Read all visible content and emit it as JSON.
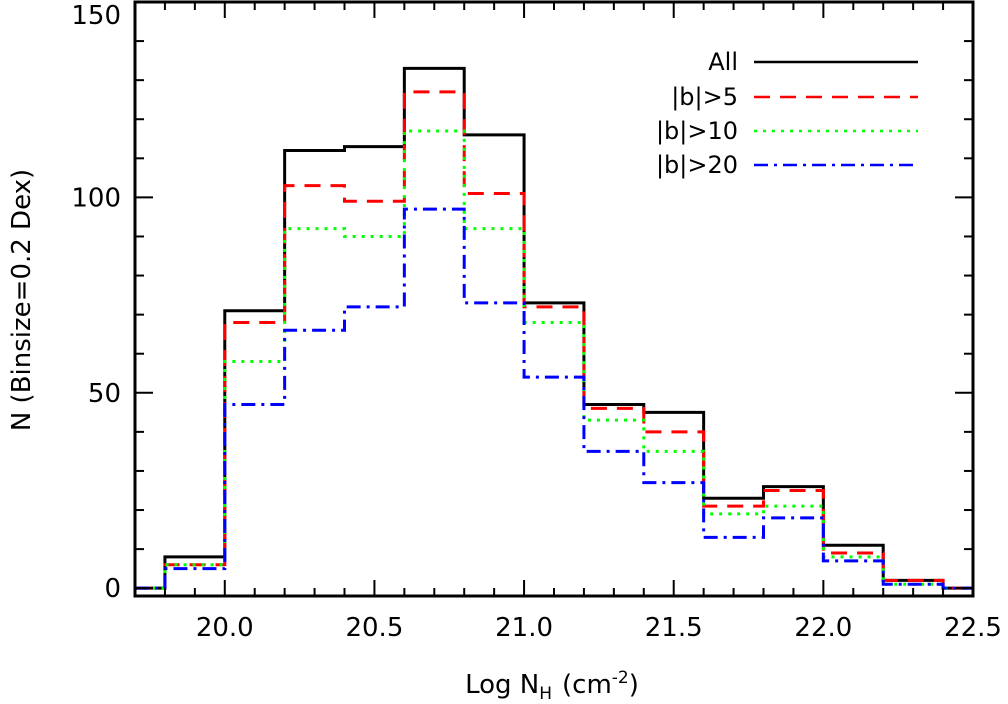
{
  "chart_data": {
    "type": "line",
    "step": true,
    "xlabel_main": "Log N",
    "xlabel_sub": "H",
    "xlabel_unit_open": "(cm",
    "xlabel_unit_sup": "-2",
    "xlabel_unit_close": ")",
    "ylabel": "N (Binsize=0.2 Dex)",
    "xlim": [
      19.7,
      22.5
    ],
    "ylim": [
      -2,
      150
    ],
    "x_ticks": [
      "20.0",
      "20.5",
      "21.0",
      "21.5",
      "22.0",
      "22.5"
    ],
    "y_ticks": [
      "0",
      "50",
      "100",
      "150"
    ],
    "bin_width": 0.2,
    "bin_starts": [
      19.8,
      20.0,
      20.2,
      20.4,
      20.6,
      20.8,
      21.0,
      21.2,
      21.4,
      21.6,
      21.8,
      22.0,
      22.2
    ],
    "legend_position": "top-right",
    "series": [
      {
        "name": "All",
        "color": "#000000",
        "dash": "solid",
        "values": [
          8,
          71,
          112,
          113,
          133,
          116,
          73,
          47,
          45,
          23,
          26,
          11,
          2
        ]
      },
      {
        "name": "|b|>5",
        "color": "#ff0000",
        "dash": "dashed",
        "values": [
          6,
          68,
          103,
          99,
          127,
          101,
          72,
          46,
          40,
          21,
          25,
          9,
          2
        ]
      },
      {
        "name": "|b|>10",
        "color": "#00ff00",
        "dash": "dotted",
        "values": [
          6,
          58,
          92,
          90,
          117,
          92,
          68,
          43,
          35,
          19,
          21,
          8,
          1
        ]
      },
      {
        "name": "|b|>20",
        "color": "#0000ff",
        "dash": "dash-dot",
        "values": [
          5,
          47,
          66,
          72,
          97,
          73,
          54,
          35,
          27,
          13,
          18,
          7,
          1
        ]
      }
    ]
  }
}
